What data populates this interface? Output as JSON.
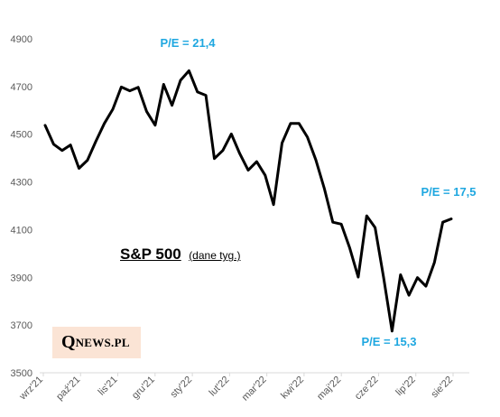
{
  "chart_data": {
    "type": "line",
    "title": "S&P 500",
    "subtitle": "(dane tyg.)",
    "ylim": [
      3500,
      4900
    ],
    "y_ticks": [
      3500,
      3700,
      3900,
      4100,
      4300,
      4500,
      4700,
      4900
    ],
    "x_tick_labels": [
      "wrz'21",
      "paź'21",
      "lis'21",
      "gru'21",
      "sty'22",
      "lut'22",
      "mar'22",
      "kwi'22",
      "maj'22",
      "cze'22",
      "lip'22",
      "sie'22"
    ],
    "grid": false,
    "series": [
      {
        "color": "#000000",
        "values": [
          4537,
          4458,
          4432,
          4455,
          4357,
          4391,
          4471,
          4545,
          4605,
          4698,
          4682,
          4697,
          4595,
          4538,
          4709,
          4621,
          4726,
          4766,
          4677,
          4663,
          4398,
          4432,
          4501,
          4419,
          4349,
          4385,
          4328,
          4205,
          4463,
          4545,
          4545,
          4488,
          4392,
          4272,
          4131,
          4123,
          4023,
          3901,
          4158,
          4109,
          3900,
          3675,
          3911,
          3825,
          3899,
          3863,
          3962,
          4131,
          4145
        ]
      }
    ]
  },
  "annotations": [
    {
      "text": "P/E = 21,4",
      "color": "#1ea7e0"
    },
    {
      "text": "P/E = 17,5",
      "color": "#1ea7e0"
    },
    {
      "text": "P/E = 15,3",
      "color": "#1ea7e0"
    }
  ],
  "logo": {
    "q": "Q",
    "rest": "NEWS.PL"
  }
}
